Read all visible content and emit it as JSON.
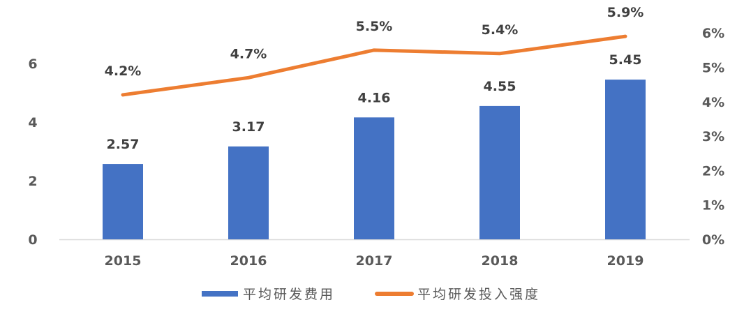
{
  "chart_data": {
    "type": "bar+line",
    "title": "",
    "categories": [
      "2015",
      "2016",
      "2017",
      "2018",
      "2019"
    ],
    "series": [
      {
        "name": "平均研发费用",
        "type": "bar",
        "axis": "left",
        "color": "#4472C4",
        "values": [
          2.57,
          3.17,
          4.16,
          4.55,
          5.45
        ],
        "labels": [
          "2.57",
          "3.17",
          "4.16",
          "4.55",
          "5.45"
        ]
      },
      {
        "name": "平均研发投入强度",
        "type": "line",
        "axis": "right",
        "color": "#ED7D31",
        "values": [
          4.2,
          4.7,
          5.5,
          5.4,
          5.9
        ],
        "labels": [
          "4.2%",
          "4.7%",
          "5.5%",
          "5.4%",
          "5.9%"
        ]
      }
    ],
    "left_axis": {
      "ylim": [
        0,
        7
      ],
      "ticks": [
        "0",
        "2",
        "4",
        "6"
      ],
      "tick_values": [
        0,
        2,
        4,
        6
      ]
    },
    "right_axis": {
      "ylim": [
        0,
        6
      ],
      "ticks": [
        "0%",
        "1%",
        "2%",
        "3%",
        "4%",
        "5%",
        "6%"
      ],
      "tick_values": [
        0,
        1,
        2,
        3,
        4,
        5,
        6
      ]
    },
    "xlabel": "",
    "ylabel": "",
    "grid": false,
    "legend_position": "bottom"
  },
  "legend": {
    "items": [
      {
        "label": "平均研发费用",
        "color": "#4472C4",
        "kind": "bar"
      },
      {
        "label": "平均研发投入强度",
        "color": "#ED7D31",
        "kind": "line"
      }
    ]
  },
  "colors": {
    "axis_line": "#D9D9D9",
    "tick_text": "#595959",
    "label_text": "#404040"
  }
}
